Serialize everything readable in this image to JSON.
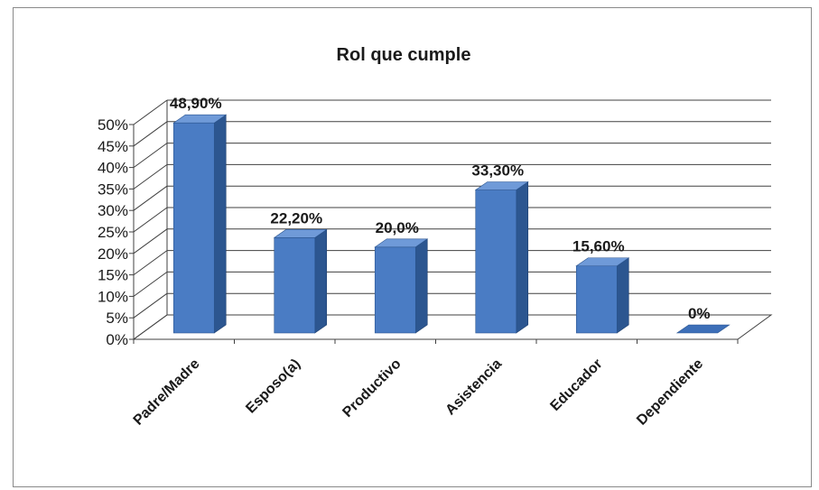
{
  "chart_data": {
    "type": "bar",
    "title": "Rol que cumple",
    "xlabel": "",
    "ylabel": "",
    "categories": [
      "Padre/Madre",
      "Esposo(a)",
      "Productivo",
      "Asistencia",
      "Educador",
      "Dependiente"
    ],
    "values": [
      48.9,
      22.2,
      20.0,
      33.3,
      15.6,
      0
    ],
    "data_labels": [
      "48,90%",
      "22,20%",
      "20,0%",
      "33,30%",
      "15,60%",
      "0%"
    ],
    "y_ticks": [
      "0%",
      "5%",
      "10%",
      "15%",
      "20%",
      "25%",
      "30%",
      "35%",
      "40%",
      "45%",
      "50%"
    ],
    "ylim": [
      0,
      50
    ],
    "grid": true,
    "legend": "none",
    "style": "3d-column",
    "colors": {
      "bar_front": "#4a7cc4",
      "bar_side": "#2c5690",
      "bar_top": "#6f9ad8",
      "grid": "#404040"
    }
  }
}
